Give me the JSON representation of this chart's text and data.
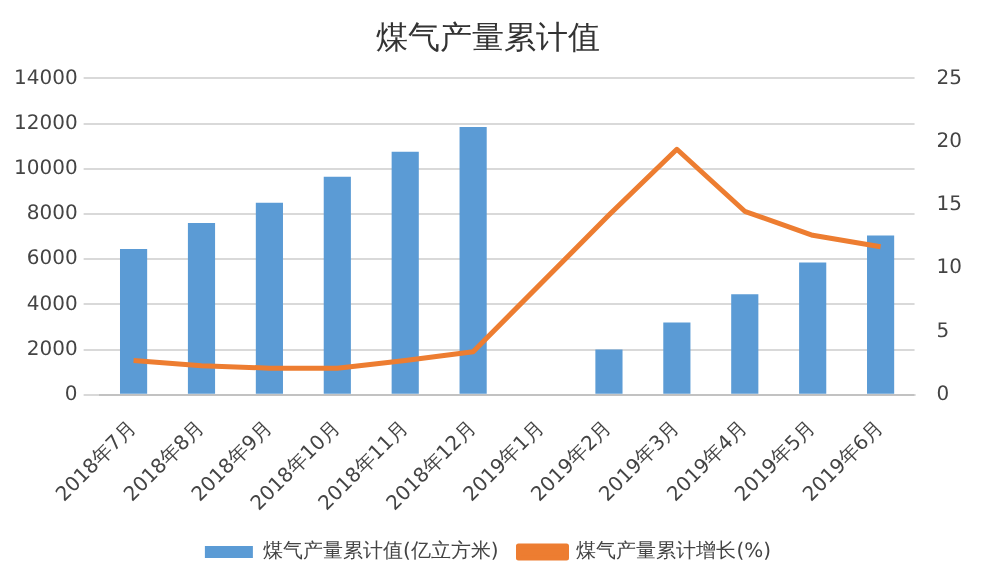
{
  "chart_data": {
    "type": "bar",
    "title": "煤气产量累计值",
    "categories": [
      "2018年7月",
      "2018年8月",
      "2018年9月",
      "2018年10月",
      "2018年11月",
      "2018年12月",
      "2019年1月",
      "2019年2月",
      "2019年3月",
      "2019年4月",
      "2019年5月",
      "2019年6月"
    ],
    "series": [
      {
        "name": "煤气产量累计值(亿立方米)",
        "color": "#5b9bd5",
        "values": [
          6450,
          7600,
          8500,
          9650,
          10750,
          11850,
          null,
          2000,
          3200,
          4450,
          5850,
          7050
        ]
      },
      {
        "name": "煤气产量累计增长(%)",
        "type": "line",
        "axis": "y2",
        "color": "#ed7d31",
        "values": [
          2.7,
          2.3,
          2.1,
          2.1,
          2.7,
          3.4,
          null,
          14.2,
          19.4,
          14.5,
          12.6,
          11.7
        ]
      }
    ],
    "ylim": [
      0,
      14000
    ],
    "yticks": [
      0,
      2000,
      4000,
      6000,
      8000,
      10000,
      12000,
      14000
    ],
    "y2lim": [
      0,
      25
    ],
    "y2ticks": [
      0,
      5,
      10,
      15,
      20,
      25
    ],
    "grid": "y",
    "legend": "bottom",
    "marker": "none"
  }
}
